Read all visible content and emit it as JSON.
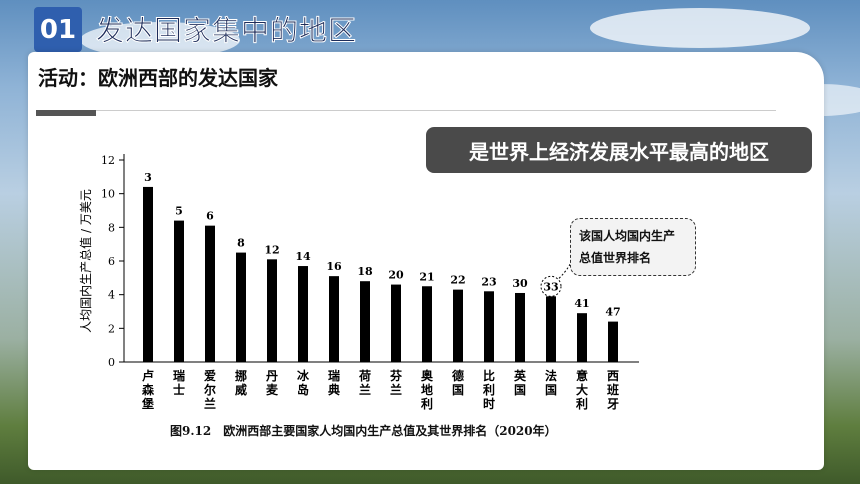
{
  "header": {
    "badge_number": "01",
    "title": "发达国家集中的地区"
  },
  "activity": {
    "title": "活动：欧洲西部的发达国家"
  },
  "banner": {
    "text": "是世界上经济发展水平最高的地区"
  },
  "callout": {
    "line1": "该国人均国内生产",
    "line2": "总值世界排名"
  },
  "caption": {
    "text": "图9.12　欧洲西部主要国家人均国内生产总值及其世界排名（2020年）"
  },
  "chart_data": {
    "type": "bar",
    "title": "",
    "ylabel": "人均国内生产总值 / 万美元",
    "xlabel": "",
    "ylim": [
      0,
      12
    ],
    "yticks": [
      0,
      2,
      4,
      6,
      8,
      10,
      12
    ],
    "categories": [
      "卢森堡",
      "瑞士",
      "爱尔兰",
      "挪威",
      "丹麦",
      "冰岛",
      "瑞典",
      "荷兰",
      "芬兰",
      "奥地利",
      "德国",
      "比利时",
      "英国",
      "法国",
      "意大利",
      "西班牙"
    ],
    "values": [
      10.4,
      8.4,
      8.1,
      6.5,
      6.1,
      5.7,
      5.1,
      4.8,
      4.6,
      4.5,
      4.3,
      4.2,
      4.1,
      3.9,
      2.9,
      2.4
    ],
    "ranks": [
      "3",
      "5",
      "6",
      "8",
      "12",
      "14",
      "16",
      "18",
      "20",
      "21",
      "22",
      "23",
      "30",
      "33",
      "41",
      "47"
    ],
    "highlighted_rank": "33",
    "bar_color": "#000000"
  }
}
